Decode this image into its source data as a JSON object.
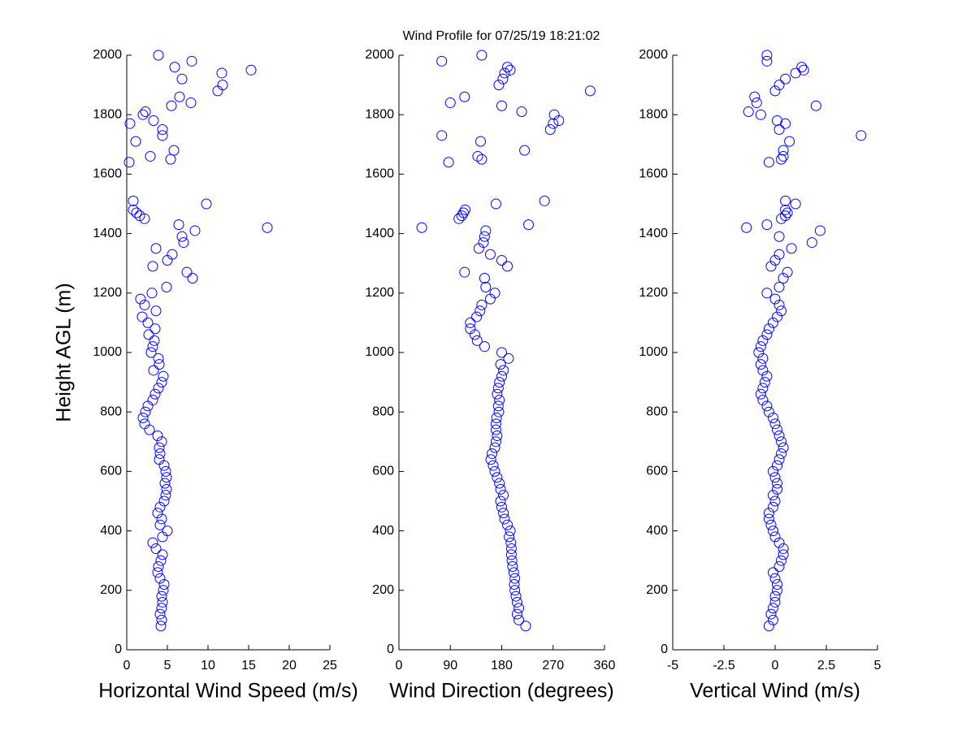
{
  "chart_data": [
    {
      "type": "scatter",
      "title": "Wind Profile for  07/25/19 18:21:02",
      "xlabel": "Horizontal Wind Speed (m/s)",
      "ylabel": "Height AGL (m)",
      "color": "#0000ff",
      "xlim": [
        0,
        25
      ],
      "xticks": [
        0,
        5,
        10,
        15,
        20,
        25
      ],
      "ylim": [
        0,
        2000
      ],
      "yticks": [
        0,
        200,
        400,
        600,
        800,
        1000,
        1200,
        1400,
        1600,
        1800,
        2000
      ],
      "x": [
        4.2,
        4.3,
        4.1,
        4.3,
        4.4,
        4.3,
        4.5,
        4.6,
        4.1,
        3.8,
        3.9,
        4.2,
        4.4,
        3.6,
        3.2,
        4.4,
        5.0,
        4.1,
        4.3,
        3.8,
        4.1,
        4.6,
        4.8,
        4.9,
        4.7,
        4.9,
        4.8,
        4.6,
        4.0,
        4.1,
        4.0,
        4.3,
        3.8,
        2.8,
        2.2,
        2.0,
        2.3,
        2.6,
        3.2,
        3.5,
        3.9,
        4.3,
        4.5,
        3.3,
        4.0,
        3.9,
        3.0,
        3.2,
        3.4,
        2.7,
        3.5,
        2.6,
        1.9,
        3.6,
        2.2,
        1.7,
        3.1,
        4.9,
        8.1,
        7.4,
        3.2,
        5.0,
        5.6,
        3.6,
        7.0,
        6.8,
        8.4,
        17.3,
        6.4,
        2.2,
        1.6,
        1.2,
        0.8,
        9.8,
        0.8,
        0.3,
        5.4,
        2.9,
        5.8,
        1.1,
        4.4,
        4.4,
        0.4,
        3.3,
        2.0,
        2.3,
        5.5,
        7.9,
        6.5,
        11.2,
        11.8,
        6.8,
        11.7,
        15.3,
        5.9,
        8.0,
        3.9
      ],
      "y": [
        80,
        100,
        120,
        140,
        160,
        180,
        200,
        220,
        240,
        260,
        280,
        300,
        320,
        340,
        360,
        380,
        400,
        420,
        440,
        460,
        480,
        500,
        520,
        540,
        560,
        580,
        600,
        620,
        640,
        660,
        680,
        700,
        720,
        740,
        760,
        780,
        800,
        820,
        840,
        860,
        880,
        900,
        920,
        940,
        960,
        980,
        1000,
        1020,
        1040,
        1060,
        1080,
        1100,
        1120,
        1140,
        1160,
        1180,
        1200,
        1220,
        1250,
        1270,
        1290,
        1310,
        1330,
        1350,
        1370,
        1390,
        1410,
        1420,
        1430,
        1450,
        1460,
        1470,
        1480,
        1500,
        1510,
        1640,
        1650,
        1660,
        1680,
        1710,
        1730,
        1750,
        1770,
        1780,
        1800,
        1810,
        1830,
        1840,
        1860,
        1880,
        1900,
        1920,
        1940,
        1950,
        1960,
        1980,
        2000
      ]
    },
    {
      "type": "scatter",
      "xlabel": "Wind Direction (degrees)",
      "color": "#0000ff",
      "xlim": [
        0,
        360
      ],
      "xticks": [
        0,
        90,
        180,
        270,
        360
      ],
      "ylim": [
        0,
        2000
      ],
      "yticks": [
        0,
        200,
        400,
        600,
        800,
        1000,
        1200,
        1400,
        1600,
        1800,
        2000
      ],
      "x": [
        222,
        210,
        207,
        210,
        207,
        205,
        203,
        202,
        203,
        201,
        199,
        198,
        197,
        197,
        196,
        193,
        195,
        190,
        185,
        183,
        180,
        178,
        183,
        178,
        176,
        172,
        168,
        165,
        161,
        163,
        168,
        170,
        172,
        170,
        170,
        171,
        175,
        174,
        176,
        172,
        174,
        176,
        180,
        183,
        178,
        192,
        180,
        150,
        137,
        133,
        125,
        125,
        136,
        142,
        145,
        160,
        168,
        152,
        150,
        115,
        190,
        180,
        160,
        140,
        148,
        150,
        152,
        40,
        227,
        105,
        110,
        113,
        116,
        170,
        255,
        87,
        145,
        138,
        220,
        143,
        75,
        265,
        270,
        280,
        272,
        215,
        180,
        90,
        115,
        335,
        175,
        182,
        185,
        195,
        190,
        75,
        145
      ],
      "y": [
        80,
        100,
        120,
        140,
        160,
        180,
        200,
        220,
        240,
        260,
        280,
        300,
        320,
        340,
        360,
        380,
        400,
        420,
        440,
        460,
        480,
        500,
        520,
        540,
        560,
        580,
        600,
        620,
        640,
        660,
        680,
        700,
        720,
        740,
        760,
        780,
        800,
        820,
        840,
        860,
        880,
        900,
        920,
        940,
        960,
        980,
        1000,
        1020,
        1040,
        1060,
        1080,
        1100,
        1120,
        1140,
        1160,
        1180,
        1200,
        1220,
        1250,
        1270,
        1290,
        1310,
        1330,
        1350,
        1370,
        1390,
        1410,
        1420,
        1430,
        1450,
        1460,
        1470,
        1480,
        1500,
        1510,
        1640,
        1650,
        1660,
        1680,
        1710,
        1730,
        1750,
        1770,
        1780,
        1800,
        1810,
        1830,
        1840,
        1860,
        1880,
        1900,
        1920,
        1940,
        1950,
        1960,
        1980,
        2000
      ]
    },
    {
      "type": "scatter",
      "xlabel": "Vertical Wind (m/s)",
      "color": "#0000ff",
      "xlim": [
        -5,
        5
      ],
      "xticks": [
        -5,
        -2.5,
        0,
        2.5,
        5
      ],
      "ylim": [
        0,
        2000
      ],
      "yticks": [
        0,
        200,
        400,
        600,
        800,
        1000,
        1200,
        1400,
        1600,
        1800,
        2000
      ],
      "x": [
        -0.3,
        -0.1,
        -0.2,
        -0.1,
        0,
        0,
        0.1,
        0.1,
        0,
        -0.1,
        0.2,
        0.3,
        0.4,
        0.4,
        0.2,
        0,
        -0.1,
        -0.2,
        -0.3,
        -0.3,
        -0.1,
        0,
        -0.1,
        0.1,
        0.1,
        0,
        -0.1,
        0.1,
        0.2,
        0.3,
        0.4,
        0.3,
        0.2,
        0.1,
        0,
        -0.1,
        -0.3,
        -0.4,
        -0.6,
        -0.7,
        -0.6,
        -0.5,
        -0.4,
        -0.6,
        -0.7,
        -0.6,
        -0.8,
        -0.7,
        -0.6,
        -0.4,
        -0.3,
        -0.1,
        0.1,
        0.3,
        0.2,
        0,
        -0.4,
        0.2,
        0.4,
        0.6,
        -0.2,
        0,
        0.2,
        0.8,
        1.8,
        0.2,
        2.2,
        -1.4,
        -0.4,
        0.3,
        0.5,
        0.6,
        0.5,
        1.0,
        0.5,
        -0.3,
        0.3,
        0.4,
        0.4,
        0.7,
        4.2,
        0.2,
        0.5,
        0.1,
        -0.7,
        -1.3,
        2.0,
        -0.9,
        -1.0,
        0,
        0.2,
        0.5,
        1.0,
        1.4,
        1.3,
        -0.4,
        -0.4
      ],
      "y": [
        80,
        100,
        120,
        140,
        160,
        180,
        200,
        220,
        240,
        260,
        280,
        300,
        320,
        340,
        360,
        380,
        400,
        420,
        440,
        460,
        480,
        500,
        520,
        540,
        560,
        580,
        600,
        620,
        640,
        660,
        680,
        700,
        720,
        740,
        760,
        780,
        800,
        820,
        840,
        860,
        880,
        900,
        920,
        940,
        960,
        980,
        1000,
        1020,
        1040,
        1060,
        1080,
        1100,
        1120,
        1140,
        1160,
        1180,
        1200,
        1220,
        1250,
        1270,
        1290,
        1310,
        1330,
        1350,
        1370,
        1390,
        1410,
        1420,
        1430,
        1450,
        1460,
        1470,
        1480,
        1500,
        1510,
        1640,
        1650,
        1660,
        1680,
        1710,
        1730,
        1750,
        1770,
        1780,
        1800,
        1810,
        1830,
        1840,
        1860,
        1880,
        1900,
        1920,
        1940,
        1950,
        1960,
        1980,
        2000
      ]
    }
  ]
}
